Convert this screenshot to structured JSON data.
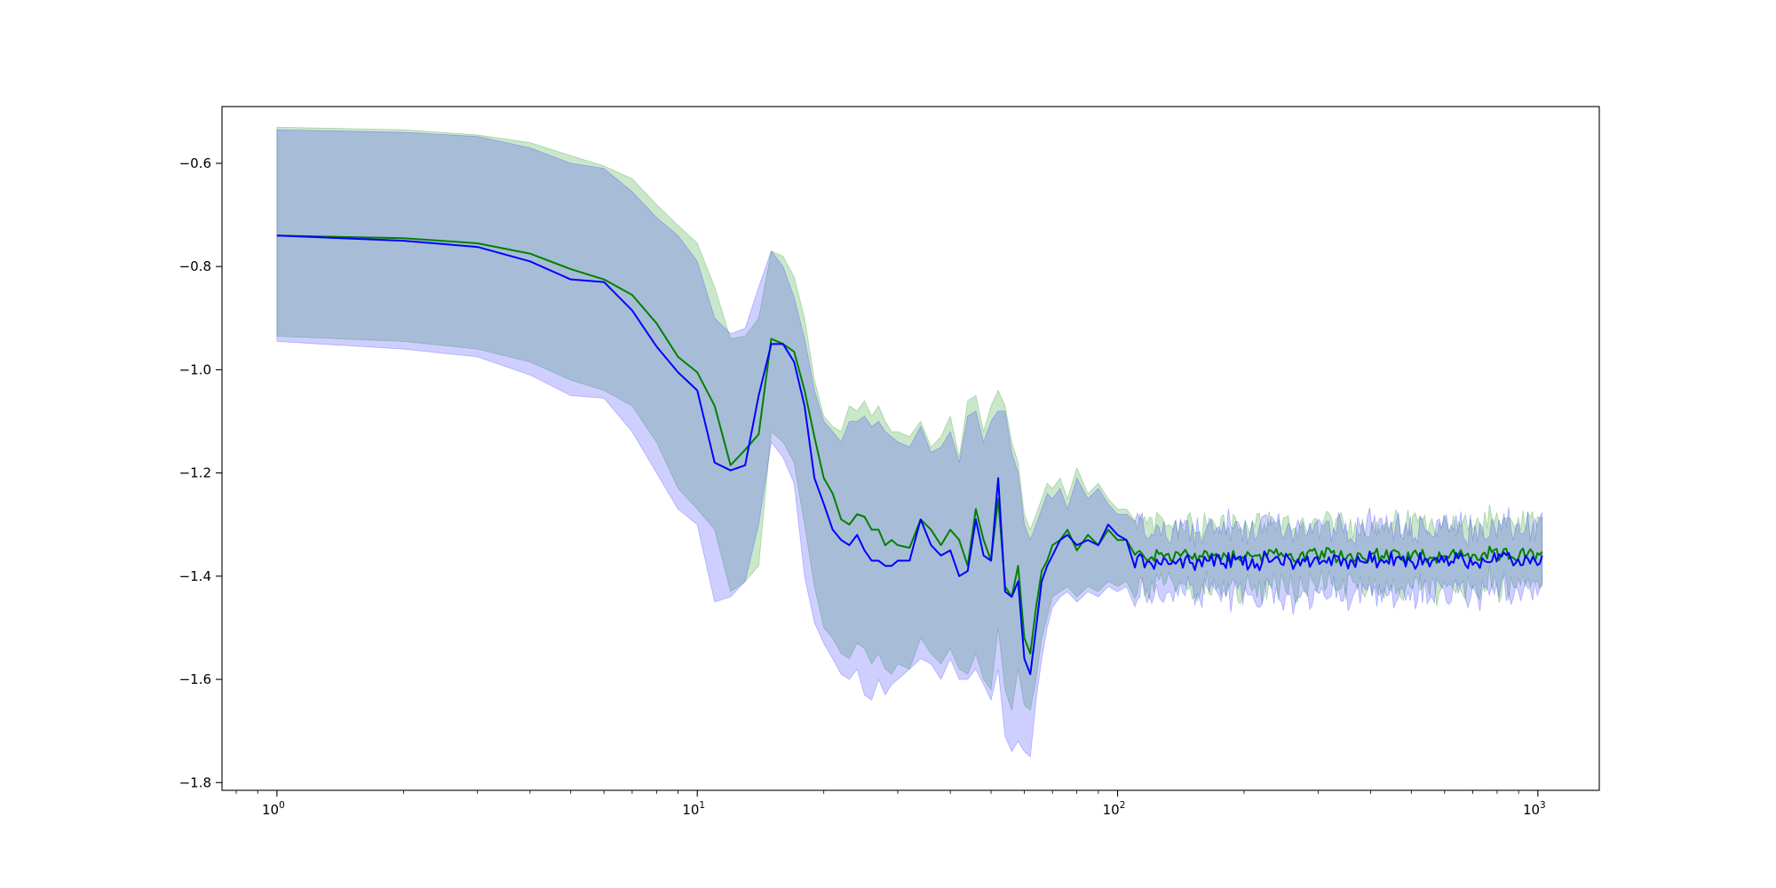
{
  "chart_data": {
    "type": "line",
    "title": "",
    "xlabel": "",
    "ylabel": "",
    "xscale": "log",
    "xlim": [
      0.74,
      1400
    ],
    "ylim": [
      -1.815,
      -0.49
    ],
    "grid": false,
    "legend": "none",
    "x_ticks": [
      {
        "value": 1,
        "base": "10",
        "exp": "0"
      },
      {
        "value": 10,
        "base": "10",
        "exp": "1"
      },
      {
        "value": 100,
        "base": "10",
        "exp": "2"
      },
      {
        "value": 1000,
        "base": "10",
        "exp": "3"
      }
    ],
    "y_ticks": [
      {
        "value": -0.6,
        "label": "−0.6"
      },
      {
        "value": -0.8,
        "label": "−0.8"
      },
      {
        "value": -1.0,
        "label": "−1.0"
      },
      {
        "value": -1.2,
        "label": "−1.2"
      },
      {
        "value": -1.4,
        "label": "−1.4"
      },
      {
        "value": -1.6,
        "label": "−1.6"
      },
      {
        "value": -1.8,
        "label": "−1.8"
      }
    ],
    "tail": {
      "x_start": 110,
      "x_end": 1024,
      "points": 170
    },
    "series": [
      {
        "color": "#008000",
        "band_color": "#2ca02c",
        "band_opacity": 0.25,
        "x": [
          1,
          2,
          3,
          4,
          5,
          6,
          7,
          8,
          9,
          10,
          11,
          12,
          13,
          14,
          15,
          16,
          17,
          18,
          19,
          20,
          21,
          22,
          23,
          24,
          25,
          26,
          27,
          28,
          29,
          30,
          32,
          34,
          36,
          38,
          40,
          42,
          44,
          46,
          48,
          50,
          52,
          54,
          56,
          58,
          60,
          62,
          64,
          66,
          68,
          70,
          73,
          76,
          80,
          85,
          90,
          95,
          100,
          105
        ],
        "y": [
          -0.74,
          -0.745,
          -0.755,
          -0.775,
          -0.805,
          -0.825,
          -0.855,
          -0.91,
          -0.975,
          -1.005,
          -1.07,
          -1.185,
          -1.155,
          -1.125,
          -0.94,
          -0.95,
          -0.965,
          -1.04,
          -1.13,
          -1.21,
          -1.24,
          -1.29,
          -1.3,
          -1.28,
          -1.285,
          -1.31,
          -1.31,
          -1.34,
          -1.33,
          -1.34,
          -1.345,
          -1.29,
          -1.31,
          -1.34,
          -1.31,
          -1.33,
          -1.38,
          -1.27,
          -1.33,
          -1.37,
          -1.25,
          -1.42,
          -1.44,
          -1.38,
          -1.52,
          -1.55,
          -1.46,
          -1.39,
          -1.37,
          -1.34,
          -1.33,
          -1.31,
          -1.35,
          -1.32,
          -1.34,
          -1.31,
          -1.33,
          -1.33
        ],
        "upper": [
          -0.53,
          -0.535,
          -0.545,
          -0.56,
          -0.585,
          -0.605,
          -0.63,
          -0.68,
          -0.72,
          -0.755,
          -0.84,
          -0.94,
          -0.935,
          -0.9,
          -0.77,
          -0.78,
          -0.82,
          -0.9,
          -1.02,
          -1.09,
          -1.11,
          -1.12,
          -1.07,
          -1.08,
          -1.06,
          -1.09,
          -1.07,
          -1.1,
          -1.12,
          -1.12,
          -1.13,
          -1.1,
          -1.15,
          -1.13,
          -1.09,
          -1.17,
          -1.06,
          -1.05,
          -1.12,
          -1.07,
          -1.04,
          -1.07,
          -1.14,
          -1.18,
          -1.28,
          -1.31,
          -1.28,
          -1.25,
          -1.22,
          -1.23,
          -1.21,
          -1.25,
          -1.19,
          -1.24,
          -1.22,
          -1.25,
          -1.27,
          -1.27
        ],
        "lower": [
          -0.935,
          -0.945,
          -0.96,
          -0.985,
          -1.02,
          -1.04,
          -1.07,
          -1.14,
          -1.23,
          -1.27,
          -1.31,
          -1.43,
          -1.41,
          -1.38,
          -1.12,
          -1.14,
          -1.18,
          -1.3,
          -1.42,
          -1.5,
          -1.52,
          -1.55,
          -1.56,
          -1.53,
          -1.54,
          -1.57,
          -1.55,
          -1.58,
          -1.59,
          -1.57,
          -1.58,
          -1.52,
          -1.55,
          -1.57,
          -1.54,
          -1.58,
          -1.59,
          -1.55,
          -1.6,
          -1.62,
          -1.5,
          -1.62,
          -1.66,
          -1.58,
          -1.65,
          -1.66,
          -1.6,
          -1.52,
          -1.48,
          -1.44,
          -1.43,
          -1.42,
          -1.44,
          -1.42,
          -1.43,
          -1.41,
          -1.42,
          -1.41
        ],
        "tail_mean": -1.36,
        "tail_band": 0.06,
        "tail_noise": 0.012
      },
      {
        "color": "#0000ff",
        "band_color": "#4040ff",
        "band_opacity": 0.25,
        "x": [
          1,
          2,
          3,
          4,
          5,
          6,
          7,
          8,
          9,
          10,
          11,
          12,
          13,
          14,
          15,
          16,
          17,
          18,
          19,
          20,
          21,
          22,
          23,
          24,
          25,
          26,
          27,
          28,
          29,
          30,
          32,
          34,
          36,
          38,
          40,
          42,
          44,
          46,
          48,
          50,
          52,
          54,
          56,
          58,
          60,
          62,
          64,
          66,
          68,
          70,
          73,
          76,
          80,
          85,
          90,
          95,
          100,
          105
        ],
        "y": [
          -0.74,
          -0.75,
          -0.762,
          -0.79,
          -0.825,
          -0.83,
          -0.885,
          -0.955,
          -1.005,
          -1.04,
          -1.18,
          -1.195,
          -1.185,
          -1.05,
          -0.95,
          -0.95,
          -0.985,
          -1.07,
          -1.21,
          -1.26,
          -1.31,
          -1.33,
          -1.34,
          -1.32,
          -1.35,
          -1.37,
          -1.37,
          -1.38,
          -1.38,
          -1.37,
          -1.37,
          -1.29,
          -1.34,
          -1.36,
          -1.35,
          -1.4,
          -1.39,
          -1.29,
          -1.36,
          -1.37,
          -1.21,
          -1.43,
          -1.44,
          -1.41,
          -1.56,
          -1.59,
          -1.5,
          -1.41,
          -1.38,
          -1.36,
          -1.33,
          -1.32,
          -1.34,
          -1.33,
          -1.34,
          -1.3,
          -1.32,
          -1.33
        ],
        "upper": [
          -0.535,
          -0.54,
          -0.548,
          -0.57,
          -0.6,
          -0.61,
          -0.655,
          -0.705,
          -0.74,
          -0.79,
          -0.9,
          -0.93,
          -0.92,
          -0.84,
          -0.77,
          -0.8,
          -0.86,
          -0.94,
          -1.04,
          -1.1,
          -1.12,
          -1.14,
          -1.1,
          -1.1,
          -1.09,
          -1.11,
          -1.1,
          -1.12,
          -1.13,
          -1.14,
          -1.15,
          -1.11,
          -1.16,
          -1.15,
          -1.12,
          -1.18,
          -1.09,
          -1.08,
          -1.14,
          -1.1,
          -1.08,
          -1.08,
          -1.16,
          -1.2,
          -1.3,
          -1.33,
          -1.3,
          -1.27,
          -1.24,
          -1.25,
          -1.23,
          -1.27,
          -1.21,
          -1.25,
          -1.23,
          -1.26,
          -1.28,
          -1.28
        ],
        "lower": [
          -0.945,
          -0.96,
          -0.975,
          -1.01,
          -1.05,
          -1.055,
          -1.12,
          -1.2,
          -1.27,
          -1.3,
          -1.45,
          -1.44,
          -1.41,
          -1.3,
          -1.14,
          -1.17,
          -1.22,
          -1.4,
          -1.49,
          -1.53,
          -1.56,
          -1.59,
          -1.6,
          -1.58,
          -1.63,
          -1.64,
          -1.6,
          -1.63,
          -1.61,
          -1.6,
          -1.58,
          -1.56,
          -1.57,
          -1.6,
          -1.56,
          -1.6,
          -1.6,
          -1.58,
          -1.61,
          -1.64,
          -1.58,
          -1.71,
          -1.74,
          -1.72,
          -1.74,
          -1.75,
          -1.64,
          -1.56,
          -1.5,
          -1.46,
          -1.44,
          -1.43,
          -1.45,
          -1.43,
          -1.44,
          -1.42,
          -1.43,
          -1.42
        ],
        "tail_mean": -1.37,
        "tail_band": 0.065,
        "tail_noise": 0.013
      }
    ]
  }
}
